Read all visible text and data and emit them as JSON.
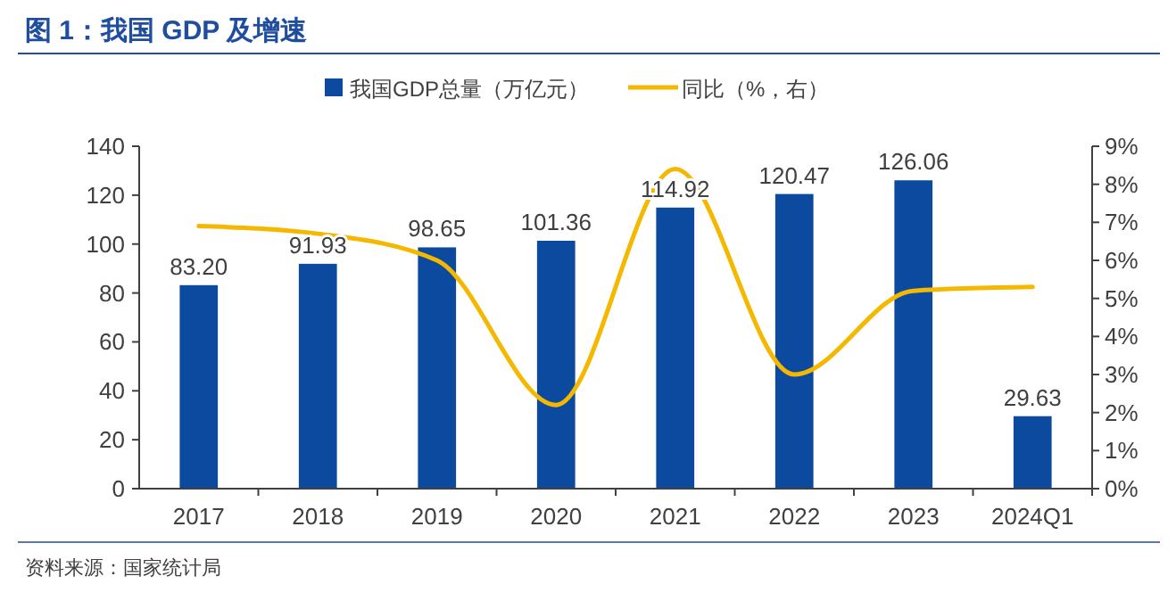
{
  "chart_data": {
    "type": "bar",
    "title": "图 1：我国 GDP 及增速",
    "categories": [
      "2017",
      "2018",
      "2019",
      "2020",
      "2021",
      "2022",
      "2023",
      "2024Q1"
    ],
    "series": [
      {
        "name": "我国GDP总量（万亿元）",
        "color": "#0b4a9e",
        "values": [
          83.2,
          91.93,
          98.65,
          101.36,
          114.92,
          120.47,
          126.06,
          29.63
        ],
        "value_labels": [
          "83.20",
          "91.93",
          "98.65",
          "101.36",
          "114.92",
          "120.47",
          "126.06",
          "29.63"
        ]
      },
      {
        "name": "同比（%，右）",
        "type": "line",
        "axis": "y2",
        "color": "#f5b800",
        "values": [
          6.9,
          6.7,
          6.0,
          2.2,
          8.4,
          3.0,
          5.2,
          5.3
        ]
      }
    ],
    "ylim": [
      0,
      140
    ],
    "yticks": [
      0,
      20,
      40,
      60,
      80,
      100,
      120,
      140
    ],
    "y2lim": [
      0,
      9
    ],
    "y2ticks": [
      {
        "value": 0,
        "label": "0%"
      },
      {
        "value": 1,
        "label": "1%"
      },
      {
        "value": 2,
        "label": "2%"
      },
      {
        "value": 3,
        "label": "3%"
      },
      {
        "value": 4,
        "label": "4%"
      },
      {
        "value": 5,
        "label": "5%"
      },
      {
        "value": 6,
        "label": "6%"
      },
      {
        "value": 7,
        "label": "7%"
      },
      {
        "value": 8,
        "label": "8%"
      },
      {
        "value": 9,
        "label": "9%"
      }
    ],
    "legend": "top",
    "grid": false,
    "annotations": [
      "资料来源：国家统计局"
    ]
  }
}
